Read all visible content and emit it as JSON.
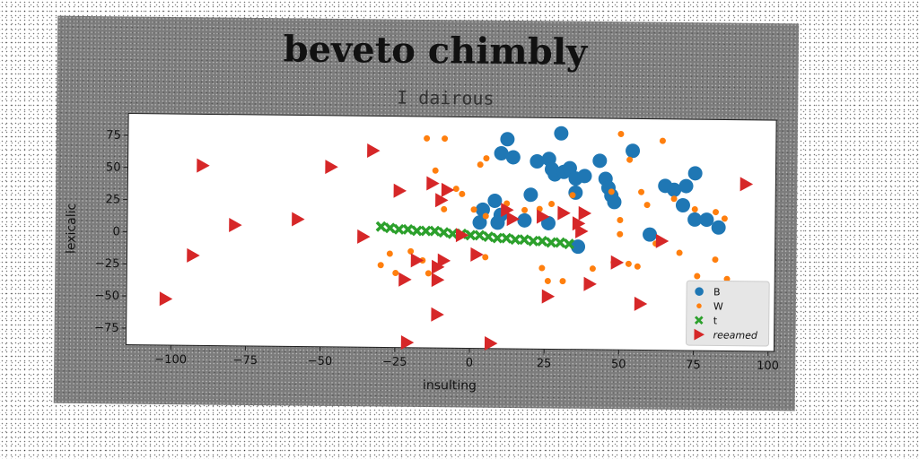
{
  "chart_data": {
    "type": "scatter",
    "title": "beveto chimbly",
    "subtitle": "I dairous",
    "xlabel": "insulting",
    "ylabel": "lexicalic",
    "xlim": [
      -115,
      102
    ],
    "ylim": [
      -88,
      92
    ],
    "xticks": [
      -100,
      -75,
      -50,
      -25,
      0,
      25,
      50,
      75,
      100
    ],
    "yticks": [
      -75,
      -50,
      -25,
      0,
      25,
      50,
      75
    ],
    "xtick_labels": [
      "−100",
      "−75",
      "−50",
      "−25",
      "0",
      "25",
      "50",
      "75",
      "100"
    ],
    "ytick_labels": [
      "−75",
      "−50",
      "−25",
      "0",
      "25",
      "50",
      "75"
    ],
    "grid": false,
    "legend_position": "bottom-right",
    "series": [
      {
        "name": "B",
        "marker": "circle-large",
        "color": "#1f77b4",
        "points": [
          [
            12,
            75
          ],
          [
            30,
            80
          ],
          [
            10,
            64
          ],
          [
            14,
            61
          ],
          [
            22,
            58
          ],
          [
            26,
            60
          ],
          [
            27,
            52
          ],
          [
            28,
            48
          ],
          [
            31,
            50
          ],
          [
            33,
            53
          ],
          [
            35,
            45
          ],
          [
            38,
            47
          ],
          [
            43,
            59
          ],
          [
            45,
            45
          ],
          [
            46,
            38
          ],
          [
            47,
            32
          ],
          [
            48,
            27
          ],
          [
            20,
            32
          ],
          [
            35,
            34
          ],
          [
            54,
            67
          ],
          [
            65,
            40
          ],
          [
            68,
            37
          ],
          [
            72,
            40
          ],
          [
            75,
            50
          ],
          [
            71,
            25
          ],
          [
            75,
            14
          ],
          [
            79,
            14
          ],
          [
            83,
            8
          ],
          [
            60,
            2
          ],
          [
            26,
            10
          ],
          [
            18,
            12
          ],
          [
            10,
            16
          ],
          [
            8,
            27
          ],
          [
            4,
            20
          ],
          [
            3,
            10
          ],
          [
            9,
            10
          ],
          [
            36,
            -8
          ]
        ]
      },
      {
        "name": "W",
        "marker": "circle-small",
        "color": "#ff7f0e",
        "points": [
          [
            -15,
            75
          ],
          [
            -9,
            75
          ],
          [
            3,
            55
          ],
          [
            5,
            60
          ],
          [
            -12,
            50
          ],
          [
            -5,
            36
          ],
          [
            -3,
            32
          ],
          [
            1,
            20
          ],
          [
            5,
            15
          ],
          [
            -9,
            20
          ],
          [
            12,
            25
          ],
          [
            18,
            20
          ],
          [
            23,
            21
          ],
          [
            27,
            25
          ],
          [
            34,
            32
          ],
          [
            47,
            35
          ],
          [
            50,
            80
          ],
          [
            53,
            60
          ],
          [
            57,
            35
          ],
          [
            59,
            25
          ],
          [
            64,
            75
          ],
          [
            68,
            30
          ],
          [
            75,
            22
          ],
          [
            82,
            20
          ],
          [
            85,
            15
          ],
          [
            50,
            13
          ],
          [
            50,
            2
          ],
          [
            62,
            -5
          ],
          [
            70,
            -12
          ],
          [
            76,
            -30
          ],
          [
            82,
            -17
          ],
          [
            86,
            -32
          ],
          [
            -30,
            -24
          ],
          [
            -27,
            -15
          ],
          [
            -25,
            -30
          ],
          [
            -20,
            -13
          ],
          [
            -16,
            -20
          ],
          [
            -14,
            -30
          ],
          [
            5,
            -17
          ],
          [
            24,
            -25
          ],
          [
            26,
            -35
          ],
          [
            31,
            -35
          ],
          [
            41,
            -25
          ],
          [
            48,
            -20
          ],
          [
            53,
            -21
          ],
          [
            56,
            -23
          ]
        ]
      },
      {
        "name": "t",
        "marker": "x",
        "color": "#2ca02c",
        "points": [
          [
            -30,
            6
          ],
          [
            -27,
            5
          ],
          [
            -24,
            4
          ],
          [
            -21,
            4
          ],
          [
            -18,
            3
          ],
          [
            -15,
            3
          ],
          [
            -12,
            3
          ],
          [
            -9,
            2
          ],
          [
            -6,
            1
          ],
          [
            -3,
            1
          ],
          [
            0,
            0
          ],
          [
            3,
            0
          ],
          [
            6,
            -1
          ],
          [
            9,
            -2
          ],
          [
            12,
            -2
          ],
          [
            15,
            -3
          ],
          [
            18,
            -3
          ],
          [
            21,
            -4
          ],
          [
            24,
            -4
          ],
          [
            27,
            -5
          ],
          [
            30,
            -5
          ],
          [
            33,
            -6
          ]
        ]
      },
      {
        "name": "reeamed",
        "marker": "triangle-right",
        "color": "#d62728",
        "points": [
          [
            -90,
            52
          ],
          [
            -47,
            52
          ],
          [
            -33,
            65
          ],
          [
            -102,
            -52
          ],
          [
            -93,
            -18
          ],
          [
            -79,
            6
          ],
          [
            -58,
            11
          ],
          [
            -36,
            -2
          ],
          [
            -24,
            34
          ],
          [
            -22,
            -35
          ],
          [
            -18,
            -20
          ],
          [
            -13,
            40
          ],
          [
            -10,
            27
          ],
          [
            -8,
            35
          ],
          [
            -11,
            -25
          ],
          [
            -11,
            -35
          ],
          [
            -9,
            -20
          ],
          [
            -11,
            -62
          ],
          [
            -21,
            -84
          ],
          [
            -3,
            0
          ],
          [
            2,
            -15
          ],
          [
            7,
            -84
          ],
          [
            12,
            20
          ],
          [
            14,
            13
          ],
          [
            24,
            15
          ],
          [
            26,
            -47
          ],
          [
            31,
            18
          ],
          [
            38,
            18
          ],
          [
            36,
            10
          ],
          [
            37,
            4
          ],
          [
            40,
            -37
          ],
          [
            49,
            -20
          ],
          [
            57,
            -52
          ],
          [
            64,
            -3
          ],
          [
            92,
            42
          ]
        ]
      }
    ]
  }
}
